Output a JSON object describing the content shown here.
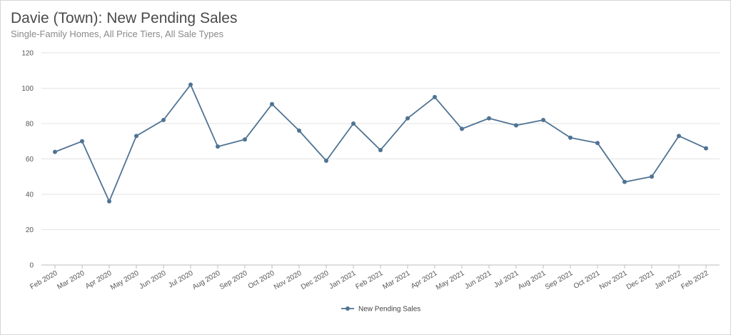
{
  "chart_data": {
    "type": "line",
    "title": "Davie (Town): New Pending Sales",
    "subtitle": "Single-Family Homes, All Price Tiers, All Sale Types",
    "xlabel": "",
    "ylabel": "",
    "ylim": [
      0,
      120
    ],
    "yticks": [
      "0",
      "20",
      "40",
      "60",
      "80",
      "100",
      "120"
    ],
    "grid": true,
    "legend_position": "bottom-center",
    "categories": [
      "Feb 2020",
      "Mar 2020",
      "Apr 2020",
      "May 2020",
      "Jun 2020",
      "Jul 2020",
      "Aug 2020",
      "Sep 2020",
      "Oct 2020",
      "Nov 2020",
      "Dec 2020",
      "Jan 2021",
      "Feb 2021",
      "Mar 2021",
      "Apr 2021",
      "May 2021",
      "Jun 2021",
      "Jul 2021",
      "Aug 2021",
      "Sep 2021",
      "Oct 2021",
      "Nov 2021",
      "Dec 2021",
      "Jan 2022",
      "Feb 2022"
    ],
    "series": [
      {
        "name": "New Pending Sales",
        "color": "#4f7393",
        "values": [
          64,
          70,
          36,
          73,
          82,
          102,
          67,
          71,
          91,
          76,
          59,
          80,
          65,
          83,
          95,
          77,
          83,
          79,
          82,
          72,
          69,
          47,
          50,
          73,
          66
        ]
      }
    ]
  }
}
